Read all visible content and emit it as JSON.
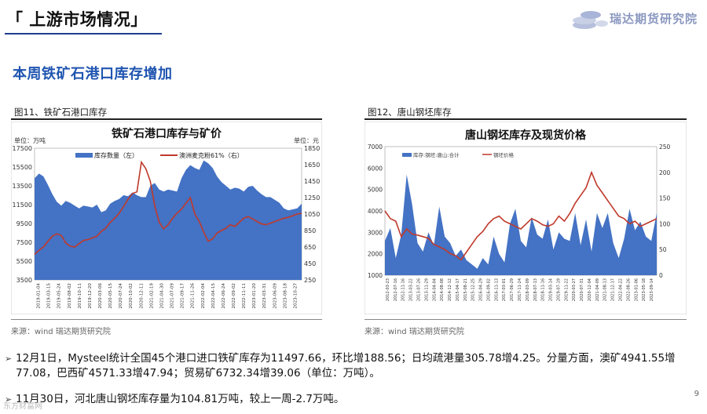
{
  "header": {
    "title": "「 上游市场情况」",
    "brand": "瑞达期货研究院"
  },
  "subtitle": "本周铁矿石港口库存增加",
  "colors": {
    "accent": "#1f55b0",
    "bar_blue": "#4472c4",
    "line_red": "#c0392b",
    "header_rule": "#1f3f8f"
  },
  "figures": {
    "left": {
      "caption": "图11、铁矿石港口库存",
      "source": "来源：wind    瑞达期货研究院"
    },
    "right": {
      "caption": "图12、唐山钢坯库存",
      "source": "来源：wind    瑞达期货研究院"
    }
  },
  "chart_data": [
    {
      "type": "area",
      "title": "铁矿石港口库存与矿价",
      "y_left_unit": "单位：万吨",
      "y_right_unit": "单位：元",
      "ylim_left": [
        3500,
        17500
      ],
      "ylim_right": [
        250,
        1850
      ],
      "y_left_ticks": [
        "17500",
        "15500",
        "13500",
        "11500",
        "9500",
        "7500",
        "5500",
        "3500"
      ],
      "y_right_ticks": [
        "1850",
        "1650",
        "1450",
        "1250",
        "1050",
        "850",
        "650",
        "450",
        "250"
      ],
      "x_tick_labels": [
        "2019-01-04",
        "2019-03-15",
        "2019-05-24",
        "2019-08-02",
        "2019-10-11",
        "2019-12-20",
        "2020-03-06",
        "2020-05-15",
        "2020-07-24",
        "2020-10-02",
        "2020-12-11",
        "2021-02-19",
        "2021-04-30",
        "2021-07-09",
        "2021-09-17",
        "2021-11-26",
        "2022-02-04",
        "2022-04-15",
        "2022-06-24",
        "2022-09-02",
        "2022-11-11",
        "2023-01-20",
        "2023-03-31",
        "2023-06-09",
        "2023-08-18",
        "2023-10-27"
      ],
      "legend": [
        "库存数量（左）",
        "澳洲麦克粉61%（右）"
      ],
      "series": [
        {
          "name": "库存数量（左）",
          "axis": "left",
          "values": [
            14300,
            14800,
            14500,
            13600,
            12600,
            11800,
            11400,
            11900,
            11700,
            11400,
            11100,
            11400,
            11300,
            11200,
            11500,
            10700,
            10900,
            11600,
            11900,
            12100,
            12500,
            12400,
            12800,
            12500,
            12300,
            12300,
            13500,
            13800,
            13100,
            12900,
            13100,
            13000,
            12900,
            14300,
            15200,
            15700,
            15400,
            15200,
            16200,
            15900,
            15400,
            14500,
            13900,
            13500,
            13100,
            13300,
            13200,
            12900,
            13400,
            13500,
            13000,
            12600,
            12300,
            12300,
            12000,
            11700,
            11100,
            10900,
            11000,
            11100,
            11600
          ]
        },
        {
          "name": "澳洲麦克粉61%（右）",
          "axis": "right",
          "values": [
            560,
            610,
            650,
            720,
            780,
            810,
            790,
            700,
            660,
            650,
            690,
            730,
            740,
            760,
            780,
            840,
            880,
            950,
            1000,
            1060,
            1140,
            1230,
            1300,
            1320,
            1680,
            1600,
            1450,
            1150,
            950,
            870,
            920,
            1000,
            1060,
            1110,
            1180,
            1250,
            1050,
            960,
            830,
            720,
            750,
            820,
            850,
            880,
            920,
            900,
            950,
            1000,
            1020,
            990,
            960,
            930,
            920,
            940,
            960,
            980,
            1000,
            1010,
            1030,
            1050,
            1060
          ]
        }
      ]
    },
    {
      "type": "area",
      "title": "唐山钢坯库存及现货价格",
      "ylim_left": [
        1000,
        7000
      ],
      "ylim_right": [
        0,
        250
      ],
      "y_left_ticks": [
        "7000",
        "6000",
        "5000",
        "4000",
        "3000",
        "2000",
        "1000"
      ],
      "y_right_ticks": [
        "250",
        "200",
        "150",
        "100",
        "50",
        "0"
      ],
      "x_tick_labels": [
        "2012-03-23",
        "2012-07-16",
        "2012-11-16",
        "2013-03-22",
        "2013-07-26",
        "2013-11-29",
        "2014-04-04",
        "2014-08-08",
        "2014-12-12",
        "2015-04-17",
        "2015-08-21",
        "2015-12-25",
        "2016-04-29",
        "2016-09-02",
        "2016-11-13",
        "2017-03-01",
        "2017-06-29",
        "2017-11-24",
        "2018-03-09",
        "2018-07-13",
        "2018-11-16",
        "2019-03-14",
        "2019-07-19",
        "2019-11-22",
        "2020-03-27",
        "2020-07-31",
        "2020-12-04",
        "2021-04-09",
        "2021-08-13",
        "2021-12-17",
        "2022-04-22",
        "2022-08-26",
        "2023-01-06",
        "2023-05-18",
        "2023-09-14"
      ],
      "legend": [
        "库存:钢坯:唐山:合计",
        "钢坯价格"
      ],
      "series": [
        {
          "name": "库存:钢坯:唐山:合计",
          "axis": "left",
          "values": [
            2600,
            3200,
            1800,
            2900,
            5700,
            4300,
            2500,
            2100,
            3000,
            2400,
            4200,
            2800,
            2500,
            1900,
            2200,
            1700,
            1500,
            1300,
            1800,
            1500,
            2800,
            2000,
            1600,
            3400,
            4100,
            2600,
            2300,
            3700,
            2900,
            2700,
            3600,
            2200,
            3000,
            2700,
            2600,
            3900,
            2400,
            3600,
            2100,
            3900,
            3200,
            3900,
            2500,
            1800,
            2700,
            4100,
            3100,
            3500,
            2800,
            2600,
            3900
          ]
        },
        {
          "name": "钢坯价格",
          "axis": "right",
          "values": [
            125,
            110,
            105,
            75,
            90,
            80,
            78,
            75,
            72,
            60,
            55,
            50,
            42,
            38,
            30,
            45,
            60,
            75,
            85,
            100,
            110,
            115,
            105,
            100,
            95,
            90,
            100,
            110,
            105,
            98,
            95,
            100,
            115,
            105,
            120,
            140,
            155,
            170,
            200,
            175,
            160,
            145,
            130,
            115,
            110,
            100,
            105,
            95,
            100,
            105,
            110
          ]
        }
      ]
    }
  ],
  "bullets": [
    {
      "line1": "12月1日，Mysteel统计全国45个港口进口铁矿库存为11497.66，环比增188.56；日均疏港量305.78增4.25。分量方面，澳矿4941.55增",
      "line2": "77.08，巴西矿4571.33增47.94；贸易矿6732.34增39.06（单位：万吨）。"
    },
    {
      "line1": "11月30日，河北唐山钢坯库存量为104.81万吨，较上一周-2.7万吨。"
    }
  ],
  "page_number": "9",
  "watermark": "东方财富网"
}
